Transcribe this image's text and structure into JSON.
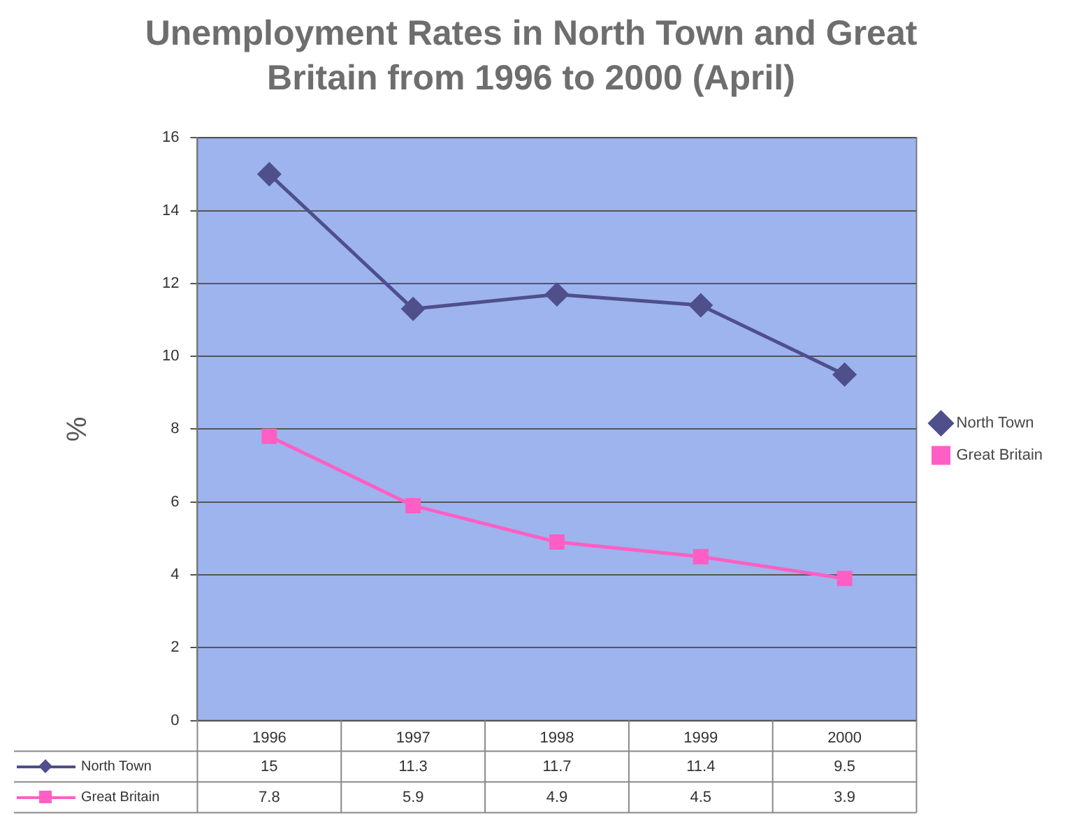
{
  "chart_data": {
    "type": "line",
    "title": "Unemployment Rates in North Town and Great Britain from 1996 to 2000 (April)",
    "ylabel": "%",
    "categories": [
      "1996",
      "1997",
      "1998",
      "1999",
      "2000"
    ],
    "series": [
      {
        "name": "North Town",
        "color": "#4f4f8c",
        "marker": "diamond",
        "values": [
          15,
          11.3,
          11.7,
          11.4,
          9.5
        ]
      },
      {
        "name": "Great Britain",
        "color": "#ff5fc4",
        "marker": "square",
        "values": [
          7.8,
          5.9,
          4.9,
          4.5,
          3.9
        ]
      }
    ],
    "ylim": [
      0,
      16
    ],
    "yticks": [
      0,
      2,
      4,
      6,
      8,
      10,
      12,
      14,
      16
    ],
    "grid": "y",
    "legend": "right",
    "data_labels": true
  }
}
